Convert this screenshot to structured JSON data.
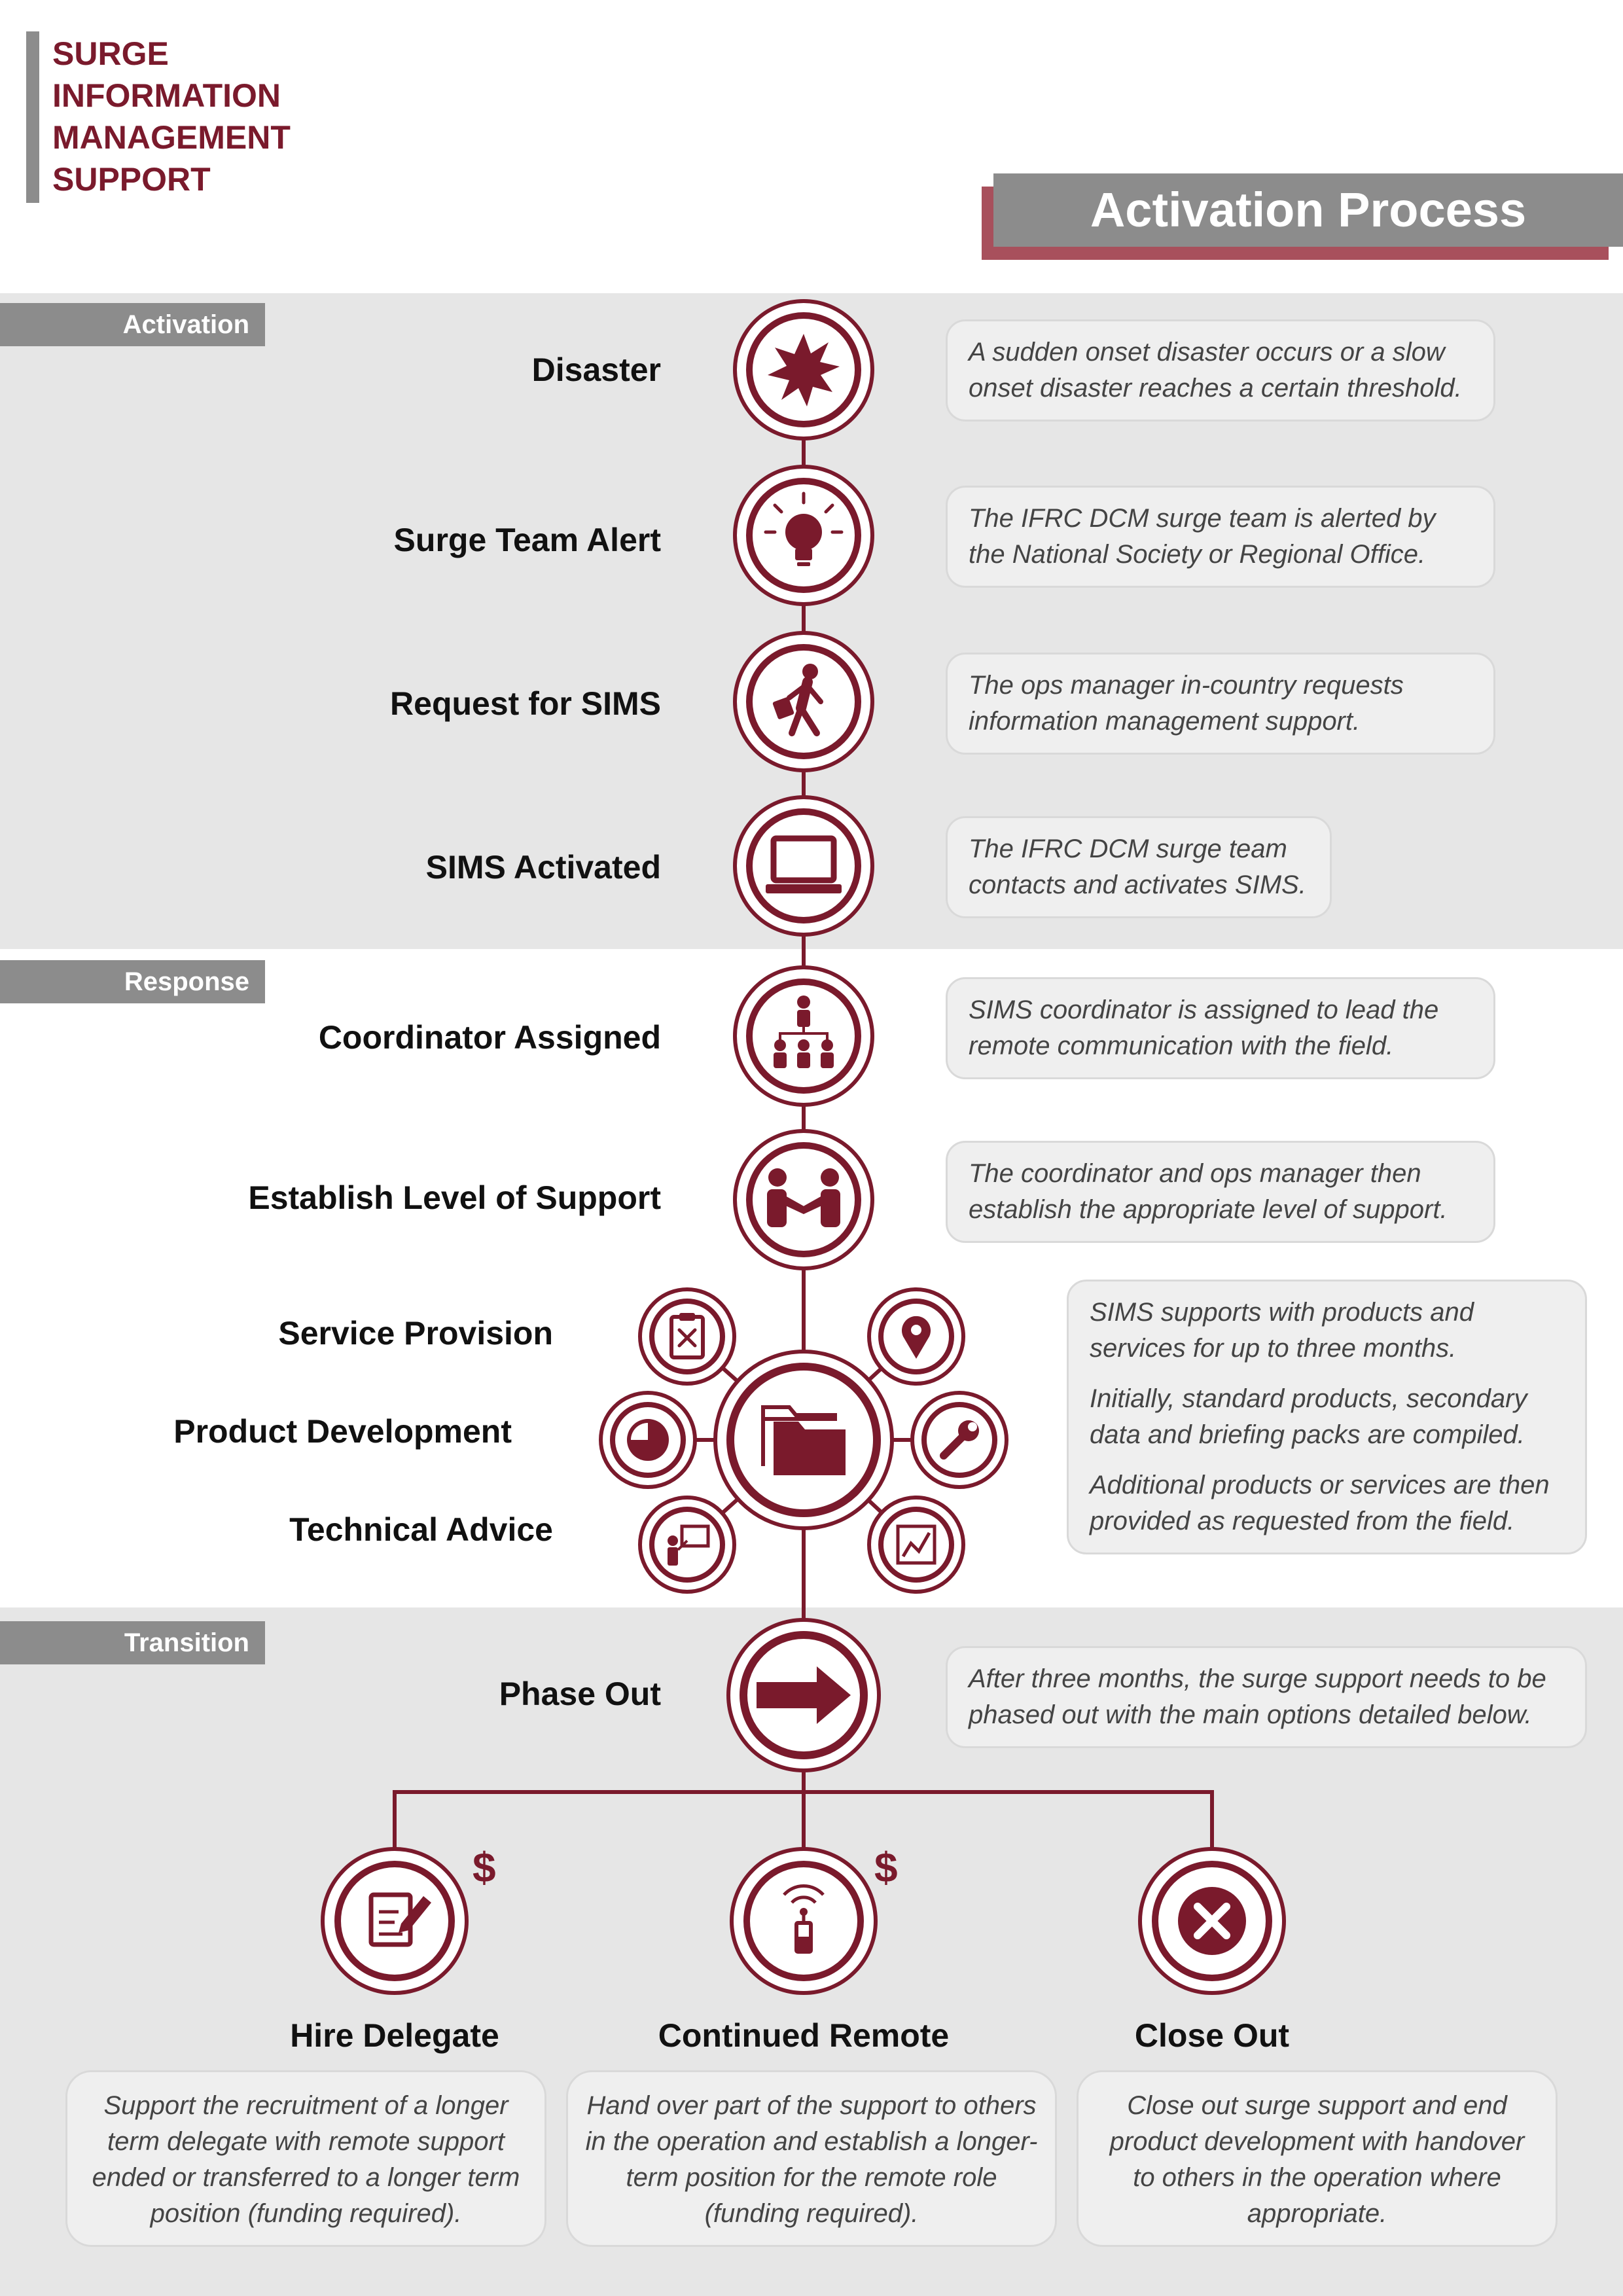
{
  "header": {
    "brand_lines": [
      "SURGE",
      "INFORMATION",
      "MANAGEMENT",
      "SUPPORT"
    ],
    "title": "Activation Process"
  },
  "sections": {
    "activation": "Activation",
    "response": "Response",
    "transition": "Transition"
  },
  "steps": [
    {
      "label": "Disaster",
      "icon": "explosion-icon",
      "desc": "A sudden onset disaster occurs or a slow onset disaster reaches a certain threshold."
    },
    {
      "label": "Surge Team Alert",
      "icon": "lightbulb-icon",
      "desc": "The IFRC DCM surge team is alerted by the National Society or Regional Office."
    },
    {
      "label": "Request for SIMS",
      "icon": "person-walking-icon",
      "desc": "The ops manager in-country requests information management support."
    },
    {
      "label": "SIMS Activated",
      "icon": "laptop-icon",
      "desc": "The IFRC DCM surge team contacts and activates SIMS."
    },
    {
      "label": "Coordinator Assigned",
      "icon": "org-chart-icon",
      "desc": "SIMS coordinator is assigned to lead the remote communication with the field."
    },
    {
      "label": "Establish Level of Support",
      "icon": "handshake-icon",
      "desc": "The coordinator and ops manager then establish the appropriate level of support."
    }
  ],
  "services": {
    "labels": [
      "Service Provision",
      "Product Development",
      "Technical Advice"
    ],
    "center_icon": "folder-icon",
    "satellite_icons": [
      "clipboard-icon",
      "map-pin-icon",
      "pie-chart-icon",
      "wrench-icon",
      "presentation-icon",
      "line-chart-icon"
    ],
    "desc": [
      "SIMS supports with products and services for up to three months.",
      "Initially, standard products, secondary data and briefing packs are compiled.",
      "Additional products or services are then provided as requested from the field."
    ]
  },
  "phase_out": {
    "label": "Phase Out",
    "icon": "arrow-right-icon",
    "desc": "After three months, the surge support needs to be phased out with the main options detailed below."
  },
  "options": [
    {
      "title": "Hire Delegate",
      "icon": "contract-sign-icon",
      "funding": "$",
      "desc": "Support the recruitment of a longer term delegate with remote support ended or transferred to a longer term position (funding required)."
    },
    {
      "title": "Continued Remote",
      "icon": "mobile-signal-icon",
      "funding": "$",
      "desc": "Hand over part of the support to others in the operation and establish a longer-term position for the remote role (funding required)."
    },
    {
      "title": "Close Out",
      "icon": "close-x-icon",
      "funding": "",
      "desc": "Close out surge support and end product development with handover to others in the operation where appropriate."
    }
  ],
  "colors": {
    "brand": "#7a1a2c",
    "accent_rose": "#a8505c",
    "header_grey": "#8c8c8c",
    "band_grey": "#e6e6e6"
  }
}
